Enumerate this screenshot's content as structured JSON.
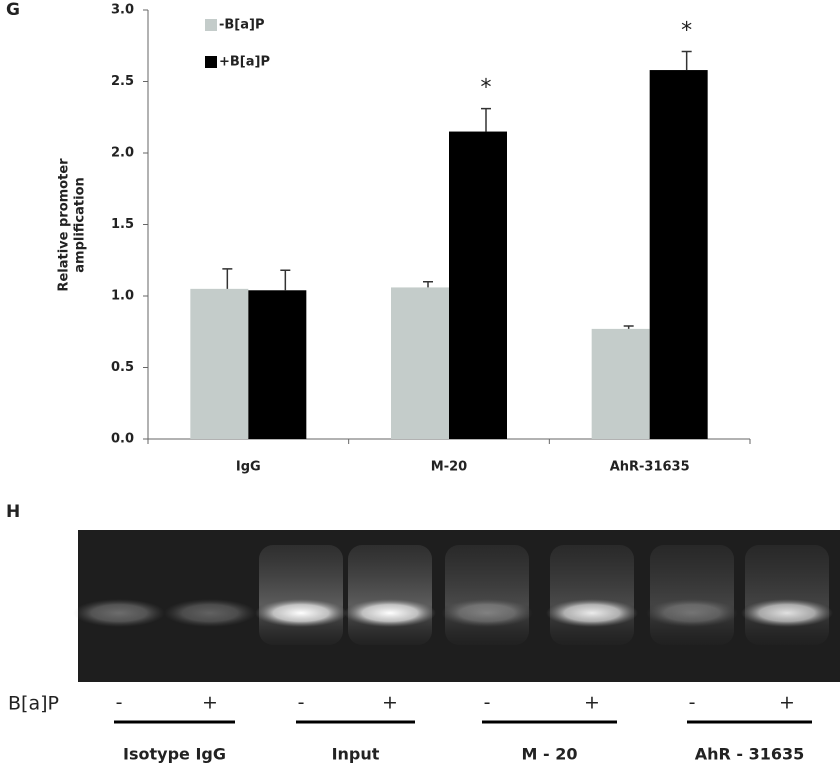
{
  "chart_data": {
    "type": "bar",
    "panel_label": "G",
    "ylabel": [
      "Relative promoter",
      "amplification"
    ],
    "categories": [
      "IgG",
      "M-20",
      "AhR-31635"
    ],
    "series": [
      {
        "name": "-B[a]P",
        "color": "#c4ccca",
        "values": [
          1.05,
          1.06,
          0.77
        ],
        "errors": [
          0.14,
          0.04,
          0.02
        ]
      },
      {
        "name": "+B[a]P",
        "color": "#000000",
        "values": [
          1.04,
          2.15,
          2.58
        ],
        "errors": [
          0.14,
          0.16,
          0.13
        ]
      }
    ],
    "annotations": [
      {
        "text": "*",
        "category": "M-20"
      },
      {
        "text": "*",
        "category": "AhR-31635"
      }
    ],
    "ylim": [
      0,
      3
    ],
    "yticks": [
      {
        "value": 0,
        "label": "0.0"
      },
      0.5,
      {
        "value": 1,
        "label": "1.0"
      },
      1.5,
      {
        "value": 2,
        "label": "2.0"
      },
      2.5,
      {
        "value": 3,
        "label": "3.0"
      }
    ],
    "legend": "top-left"
  },
  "gel": {
    "panel_label": "H",
    "row_label": "B[a]P",
    "lanes": [
      "-",
      "+",
      "-",
      "+",
      "-",
      "+",
      "-",
      "+"
    ],
    "groups": [
      "Isotype IgG",
      "Input",
      "M - 20",
      "AhR - 31635"
    ]
  }
}
